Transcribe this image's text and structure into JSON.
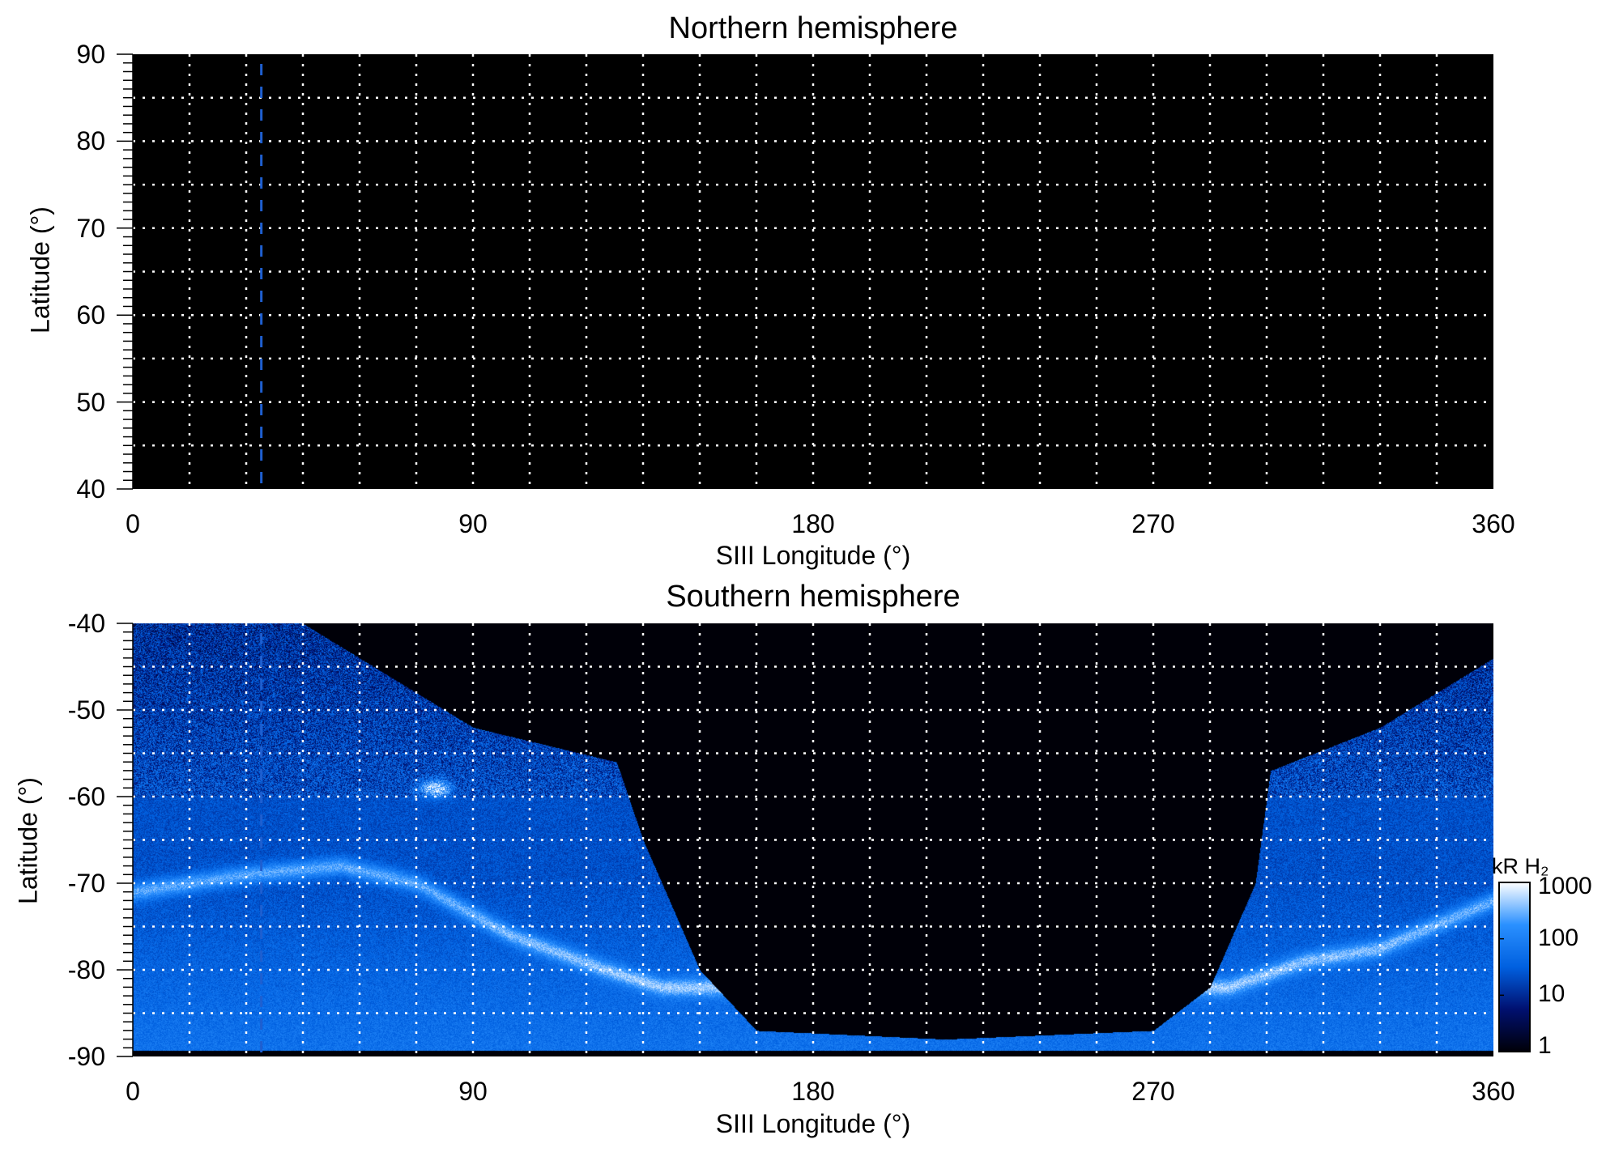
{
  "chart_data": [
    {
      "type": "heatmap",
      "title": "Northern hemisphere",
      "xlabel": "SIII Longitude (°)",
      "ylabel": "Latitude (°)",
      "xlim": [
        0,
        360
      ],
      "ylim": [
        40,
        90
      ],
      "xticks": [
        "0",
        "90",
        "180",
        "270",
        "360"
      ],
      "yticks": [
        "40",
        "50",
        "60",
        "70",
        "80",
        "90"
      ],
      "grid": true,
      "grid_x_step": 15,
      "grid_y_step": 5,
      "marker_line_longitude": 34,
      "marker_color": "#1e5fd0",
      "background": "#000000"
    },
    {
      "type": "heatmap",
      "title": "Southern hemisphere",
      "xlabel": "SIII Longitude (°)",
      "ylabel": "Latitude (°)",
      "xlim": [
        0,
        360
      ],
      "ylim": [
        -90,
        -40
      ],
      "xticks": [
        "0",
        "90",
        "180",
        "270",
        "360"
      ],
      "yticks": [
        "-40",
        "-50",
        "-60",
        "-70",
        "-80",
        "-90"
      ],
      "grid": true,
      "grid_x_step": 15,
      "grid_y_step": 5,
      "marker_line_longitude": 34,
      "data_boundary": [
        [
          0,
          -40
        ],
        [
          45,
          -40
        ],
        [
          90,
          -52
        ],
        [
          128,
          -56
        ],
        [
          135,
          -65
        ],
        [
          150,
          -80
        ],
        [
          165,
          -87
        ],
        [
          215,
          -88
        ],
        [
          270,
          -87
        ],
        [
          285,
          -82
        ],
        [
          297,
          -70
        ],
        [
          301,
          -57
        ],
        [
          330,
          -52
        ],
        [
          360,
          -44
        ]
      ],
      "main_oval": [
        [
          0,
          -71
        ],
        [
          30,
          -69
        ],
        [
          55,
          -68
        ],
        [
          75,
          -70
        ],
        [
          100,
          -76
        ],
        [
          125,
          -80
        ],
        [
          140,
          -82
        ],
        [
          290,
          -82
        ],
        [
          310,
          -79
        ],
        [
          330,
          -77.5
        ],
        [
          360,
          -72
        ]
      ],
      "bright_spot": [
        80,
        -59
      ],
      "colorbar": {
        "label": "kR H₂",
        "scale": "log",
        "ticks": [
          "1",
          "10",
          "100",
          "1000"
        ],
        "range": [
          1,
          1000
        ],
        "colors": [
          "#000008",
          "#001070",
          "#0060e0",
          "#2a90ff",
          "#ffffff"
        ]
      }
    }
  ]
}
